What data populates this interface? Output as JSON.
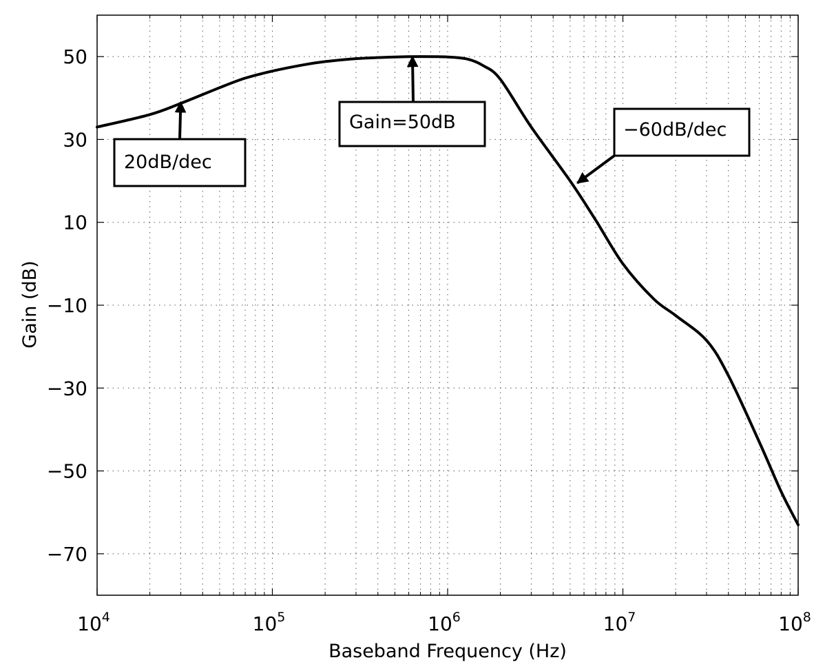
{
  "chart_data": {
    "type": "line",
    "title": "",
    "xlabel": "Baseband Frequency (Hz)",
    "ylabel": "Gain (dB)",
    "xscale": "log",
    "xlim": [
      10000,
      100000000
    ],
    "ylim": [
      -80,
      60
    ],
    "grid": true,
    "x_ticks": [
      {
        "value": 10000,
        "base": "10",
        "exp": "4"
      },
      {
        "value": 100000,
        "base": "10",
        "exp": "5"
      },
      {
        "value": 1000000,
        "base": "10",
        "exp": "6"
      },
      {
        "value": 10000000,
        "base": "10",
        "exp": "7"
      },
      {
        "value": 100000000,
        "base": "10",
        "exp": "8"
      }
    ],
    "y_ticks": [
      {
        "value": 50,
        "label": "50"
      },
      {
        "value": 30,
        "label": "30"
      },
      {
        "value": 10,
        "label": "10"
      },
      {
        "value": -10,
        "label": "−10"
      },
      {
        "value": -30,
        "label": "−30"
      },
      {
        "value": -50,
        "label": "−50"
      },
      {
        "value": -70,
        "label": "−70"
      }
    ],
    "series": [
      {
        "color": "#000000",
        "x": [
          10000,
          20000,
          30000,
          50000,
          70000,
          100000,
          150000,
          200000,
          300000,
          500000,
          700000,
          1000000,
          1300000,
          1600000,
          2000000,
          3000000,
          5000000,
          7000000,
          10000000,
          15000000,
          20000000,
          30000000,
          40000000,
          60000000,
          80000000,
          100000000
        ],
        "y": [
          33,
          36,
          38.7,
          42.5,
          44.8,
          46.5,
          48,
          48.8,
          49.5,
          49.9,
          50,
          49.9,
          49.4,
          47.8,
          44.5,
          33,
          20,
          10.5,
          0,
          -8.5,
          -12.5,
          -18.5,
          -27,
          -43,
          -55,
          -63
        ]
      }
    ],
    "annotations": [
      {
        "text": "20dB/dec",
        "target": {
          "x": 30000,
          "y": 39
        }
      },
      {
        "text": "Gain=50dB",
        "target": {
          "x": 630000,
          "y": 50
        }
      },
      {
        "text": "−60dB/dec",
        "target": {
          "x": 5500000,
          "y": 19.5
        }
      }
    ]
  }
}
